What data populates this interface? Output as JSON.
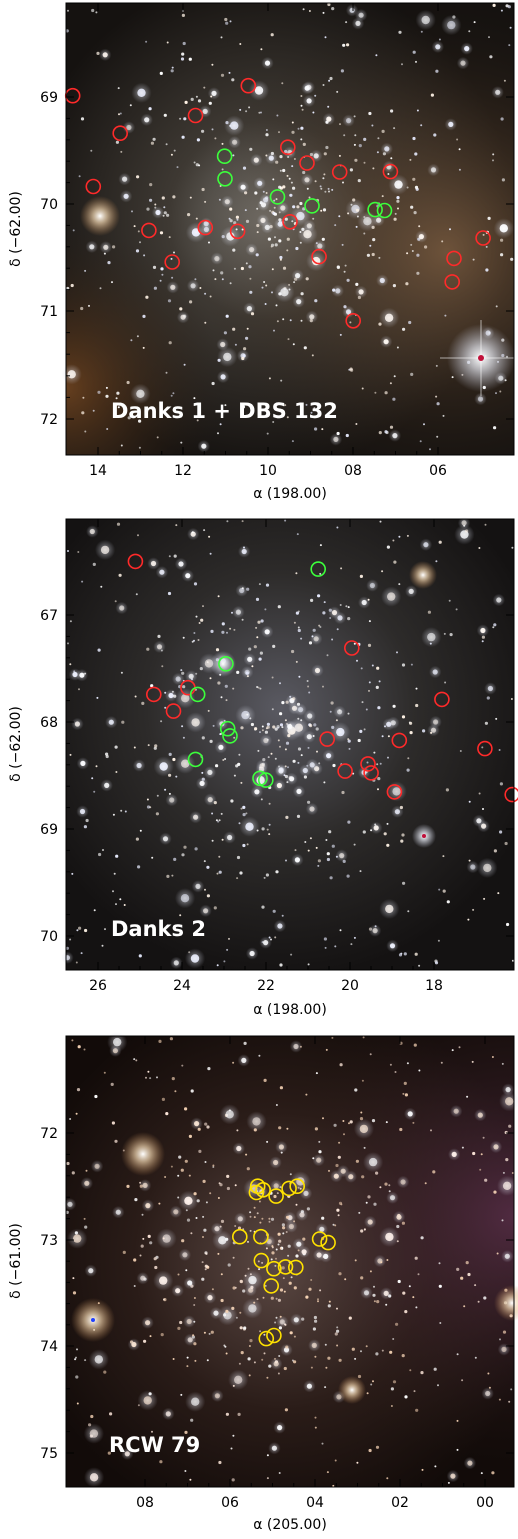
{
  "figure": {
    "panels": [
      {
        "id": "danks1",
        "title": "Danks 1 + DBS 132",
        "xlabel": "α (198.00)",
        "ylabel": "δ (−62.00)",
        "xticks": [
          "14",
          "12",
          "10",
          "08",
          "06"
        ],
        "yticks": [
          "69",
          "70",
          "71",
          "72"
        ],
        "colors": {
          "red": "#ff2a2a",
          "green": "#3cff3c",
          "yellow": "#ffe200"
        },
        "markers": [
          {
            "color": "red",
            "u": 0.015,
            "v": 0.205
          },
          {
            "color": "red",
            "u": 0.121,
            "v": 0.288
          },
          {
            "color": "red",
            "u": 0.061,
            "v": 0.406
          },
          {
            "color": "red",
            "u": 0.289,
            "v": 0.249
          },
          {
            "color": "red",
            "u": 0.407,
            "v": 0.183
          },
          {
            "color": "green",
            "u": 0.354,
            "v": 0.339
          },
          {
            "color": "green",
            "u": 0.355,
            "v": 0.389
          },
          {
            "color": "red",
            "u": 0.495,
            "v": 0.319
          },
          {
            "color": "red",
            "u": 0.538,
            "v": 0.354
          },
          {
            "color": "red",
            "u": 0.611,
            "v": 0.374
          },
          {
            "color": "red",
            "u": 0.724,
            "v": 0.373
          },
          {
            "color": "green",
            "u": 0.472,
            "v": 0.429
          },
          {
            "color": "green",
            "u": 0.549,
            "v": 0.449
          },
          {
            "color": "green",
            "u": 0.69,
            "v": 0.457
          },
          {
            "color": "green",
            "u": 0.711,
            "v": 0.459
          },
          {
            "color": "red",
            "u": 0.5,
            "v": 0.484
          },
          {
            "color": "red",
            "u": 0.311,
            "v": 0.497
          },
          {
            "color": "red",
            "u": 0.383,
            "v": 0.505
          },
          {
            "color": "red",
            "u": 0.185,
            "v": 0.503
          },
          {
            "color": "red",
            "u": 0.237,
            "v": 0.573
          },
          {
            "color": "red",
            "u": 0.565,
            "v": 0.561
          },
          {
            "color": "red",
            "u": 0.931,
            "v": 0.52
          },
          {
            "color": "red",
            "u": 0.866,
            "v": 0.565
          },
          {
            "color": "red",
            "u": 0.862,
            "v": 0.617
          },
          {
            "color": "red",
            "u": 0.641,
            "v": 0.703
          }
        ]
      },
      {
        "id": "danks2",
        "title": "Danks 2",
        "xlabel": "α (198.00)",
        "ylabel": "δ (−62.00)",
        "xticks": [
          "26",
          "24",
          "22",
          "20",
          "18"
        ],
        "yticks": [
          "67",
          "68",
          "69",
          "70"
        ],
        "markers": [
          {
            "color": "red",
            "u": 0.155,
            "v": 0.094
          },
          {
            "color": "green",
            "u": 0.563,
            "v": 0.111
          },
          {
            "color": "red",
            "u": 0.638,
            "v": 0.286
          },
          {
            "color": "green",
            "u": 0.357,
            "v": 0.321
          },
          {
            "color": "red",
            "u": 0.272,
            "v": 0.374
          },
          {
            "color": "green",
            "u": 0.294,
            "v": 0.389
          },
          {
            "color": "red",
            "u": 0.196,
            "v": 0.389
          },
          {
            "color": "red",
            "u": 0.24,
            "v": 0.426
          },
          {
            "color": "red",
            "u": 0.839,
            "v": 0.4
          },
          {
            "color": "green",
            "u": 0.361,
            "v": 0.465
          },
          {
            "color": "green",
            "u": 0.366,
            "v": 0.481
          },
          {
            "color": "red",
            "u": 0.583,
            "v": 0.488
          },
          {
            "color": "red",
            "u": 0.744,
            "v": 0.491
          },
          {
            "color": "red",
            "u": 0.935,
            "v": 0.509
          },
          {
            "color": "green",
            "u": 0.289,
            "v": 0.533
          },
          {
            "color": "red",
            "u": 0.674,
            "v": 0.543
          },
          {
            "color": "red",
            "u": 0.623,
            "v": 0.559
          },
          {
            "color": "red",
            "u": 0.681,
            "v": 0.563
          },
          {
            "color": "green",
            "u": 0.433,
            "v": 0.575
          },
          {
            "color": "green",
            "u": 0.446,
            "v": 0.579
          },
          {
            "color": "red",
            "u": 0.733,
            "v": 0.605
          },
          {
            "color": "red",
            "u": 0.996,
            "v": 0.611
          }
        ]
      },
      {
        "id": "rcw79",
        "title": "RCW 79",
        "xlabel": "α (205.00)",
        "ylabel": "δ (−61.00)",
        "xticks": [
          "08",
          "06",
          "04",
          "02",
          "00"
        ],
        "yticks": [
          "72",
          "73",
          "74",
          "75"
        ],
        "markers": [
          {
            "color": "yellow",
            "u": 0.428,
            "v": 0.333
          },
          {
            "color": "yellow",
            "u": 0.425,
            "v": 0.347
          },
          {
            "color": "yellow",
            "u": 0.44,
            "v": 0.341
          },
          {
            "color": "yellow",
            "u": 0.469,
            "v": 0.355
          },
          {
            "color": "yellow",
            "u": 0.498,
            "v": 0.338
          },
          {
            "color": "yellow",
            "u": 0.516,
            "v": 0.333
          },
          {
            "color": "yellow",
            "u": 0.388,
            "v": 0.445
          },
          {
            "color": "yellow",
            "u": 0.435,
            "v": 0.445
          },
          {
            "color": "yellow",
            "u": 0.566,
            "v": 0.45
          },
          {
            "color": "yellow",
            "u": 0.585,
            "v": 0.458
          },
          {
            "color": "yellow",
            "u": 0.436,
            "v": 0.498
          },
          {
            "color": "yellow",
            "u": 0.464,
            "v": 0.516
          },
          {
            "color": "yellow",
            "u": 0.49,
            "v": 0.512
          },
          {
            "color": "yellow",
            "u": 0.513,
            "v": 0.513
          },
          {
            "color": "yellow",
            "u": 0.458,
            "v": 0.554
          },
          {
            "color": "yellow",
            "u": 0.447,
            "v": 0.671
          },
          {
            "color": "yellow",
            "u": 0.464,
            "v": 0.664
          }
        ]
      }
    ]
  }
}
